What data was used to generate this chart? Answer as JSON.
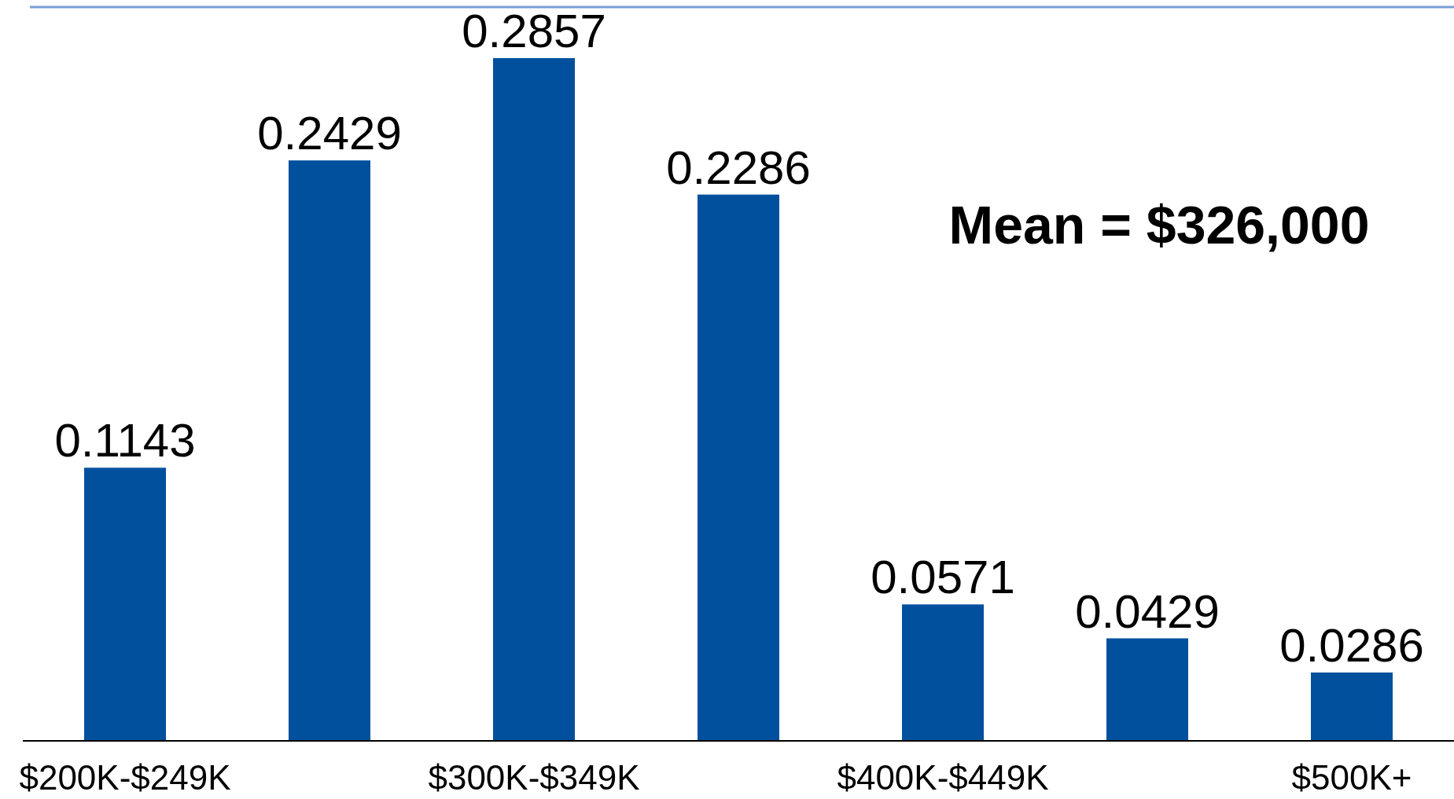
{
  "chart_data": {
    "type": "bar",
    "categories": [
      "$200K-$249K",
      null,
      "$300K-$349K",
      null,
      "$400K-$449K",
      null,
      "$500K+"
    ],
    "values": [
      0.1143,
      0.2429,
      0.2857,
      0.2286,
      0.0571,
      0.0429,
      0.0286
    ],
    "color": "#00509e",
    "data_labels": true,
    "annotations": [
      "Mean = $326,000"
    ]
  }
}
